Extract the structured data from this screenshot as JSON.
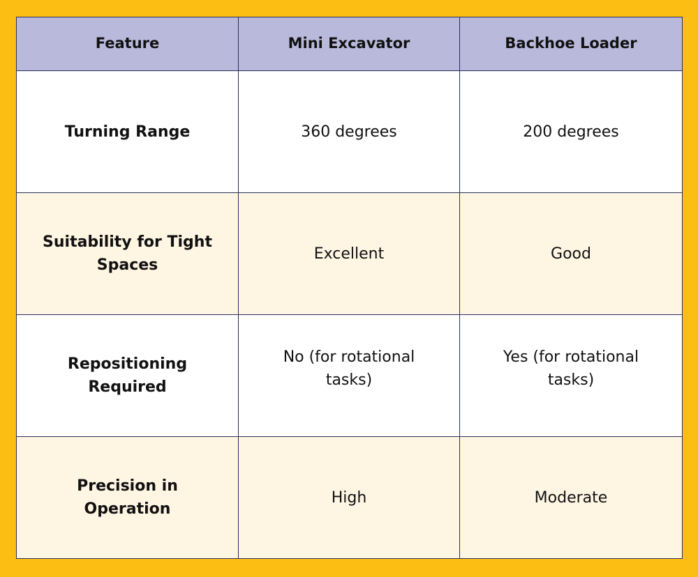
{
  "table": {
    "headers": [
      "Feature",
      "Mini Excavator",
      "Backhoe Loader"
    ],
    "rows": [
      [
        "Turning Range",
        "360 degrees",
        "200 degrees"
      ],
      [
        "Suitability for Tight Spaces",
        "Excellent",
        "Good"
      ],
      [
        "Repositioning Required",
        "No (for rotational tasks)",
        "Yes (for rotational tasks)"
      ],
      [
        "Precision in Operation",
        "High",
        "Moderate"
      ]
    ]
  },
  "colors": {
    "background": "#FDBE13",
    "header_fill": "#B9B9DC",
    "row_alt_fill": "#FFF5E3",
    "border": "#2B2D5C"
  }
}
